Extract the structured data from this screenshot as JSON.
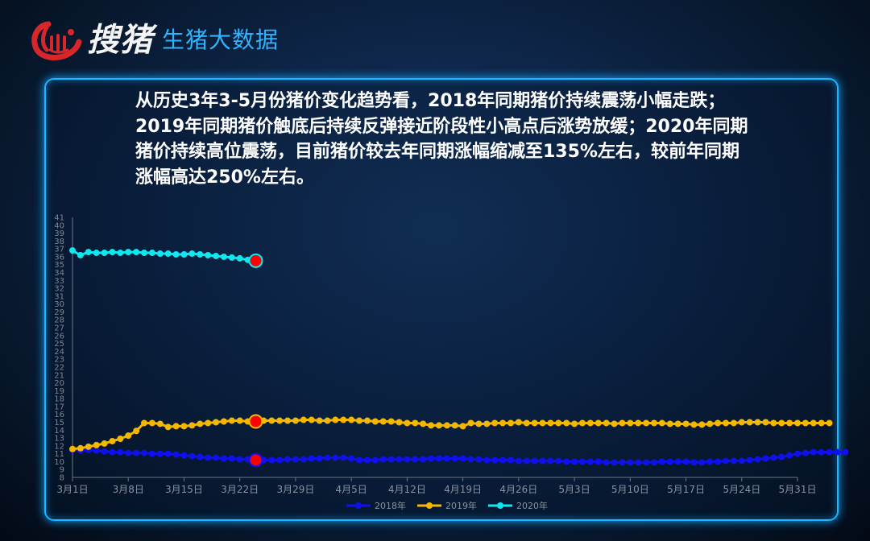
{
  "header": {
    "brand_name": "搜猪",
    "subtitle": "生猪大数据"
  },
  "summary": "从历史3年3-5月份猪价变化趋势看，2018年同期猪价持续震荡小幅走跌；2019年同期猪价触底后持续反弹接近阶段性小高点后涨势放缓；2020年同期猪价持续高位震荡，目前猪价较去年同期涨幅缩减至135%左右，较前年同期涨幅高达250%左右。",
  "colors": {
    "brand_red": "#d9262b",
    "subtitle_blue": "#2fb4ff",
    "panel_border": "#1ab6ff",
    "marker_red": "#ff0000"
  },
  "chart_data": {
    "type": "line",
    "title": "",
    "xlabel": "",
    "ylabel": "",
    "ylim": [
      8,
      41
    ],
    "y_ticks": [
      "8",
      "9",
      "10",
      "11",
      "12",
      "13",
      "14",
      "15",
      "16",
      "17",
      "18",
      "19",
      "20",
      "21",
      "22",
      "23",
      "24",
      "25",
      "26",
      "27",
      "28",
      "29",
      "30",
      "31",
      "32",
      "33",
      "34",
      "35",
      "36",
      "37",
      "38",
      "39",
      "40",
      "41"
    ],
    "x_tick_labels": [
      "3月1日",
      "3月8日",
      "3月15日",
      "3月22日",
      "3月29日",
      "4月5日",
      "4月12日",
      "4月19日",
      "4月26日",
      "5月3日",
      "5月10日",
      "5月17日",
      "5月24日",
      "5月31日"
    ],
    "x_start": "3月1日",
    "x_end": "5月31日",
    "legend_position": "bottom-center",
    "highlight_date": "3月24日",
    "series": [
      {
        "name": "2018年",
        "color": "#1010ee",
        "values": [
          11.5,
          11.4,
          11.5,
          11.4,
          11.3,
          11.2,
          11.2,
          11.1,
          11.1,
          11.1,
          11.0,
          11.0,
          11.0,
          10.9,
          10.8,
          10.7,
          10.6,
          10.5,
          10.5,
          10.4,
          10.4,
          10.3,
          10.3,
          10.2,
          10.2,
          10.2,
          10.2,
          10.3,
          10.3,
          10.3,
          10.4,
          10.4,
          10.5,
          10.5,
          10.5,
          10.4,
          10.2,
          10.2,
          10.2,
          10.3,
          10.3,
          10.3,
          10.3,
          10.3,
          10.3,
          10.4,
          10.4,
          10.4,
          10.4,
          10.4,
          10.3,
          10.3,
          10.2,
          10.2,
          10.2,
          10.2,
          10.1,
          10.1,
          10.1,
          10.1,
          10.1,
          10.1,
          10.0,
          10.0,
          10.0,
          10.0,
          10.0,
          9.9,
          9.9,
          9.9,
          9.9,
          9.9,
          9.9,
          9.9,
          10.0,
          10.0,
          10.0,
          10.0,
          9.9,
          9.9,
          10.0,
          10.0,
          10.1,
          10.1,
          10.1,
          10.2,
          10.3,
          10.4,
          10.5,
          10.6,
          10.8,
          11.0,
          11.1,
          11.2,
          11.2,
          11.2,
          11.2,
          11.2
        ]
      },
      {
        "name": "2019年",
        "color": "#f5b800",
        "values": [
          11.6,
          11.7,
          11.9,
          12.1,
          12.3,
          12.6,
          12.9,
          13.3,
          13.9,
          14.9,
          14.9,
          14.8,
          14.4,
          14.5,
          14.5,
          14.6,
          14.8,
          14.9,
          15.0,
          15.1,
          15.2,
          15.2,
          15.1,
          15.1,
          15.2,
          15.2,
          15.2,
          15.2,
          15.2,
          15.3,
          15.3,
          15.2,
          15.2,
          15.3,
          15.3,
          15.3,
          15.2,
          15.2,
          15.1,
          15.1,
          15.1,
          15.0,
          14.9,
          14.9,
          14.8,
          14.6,
          14.6,
          14.6,
          14.6,
          14.5,
          14.9,
          14.8,
          14.8,
          14.9,
          14.9,
          14.9,
          15.0,
          14.9,
          14.9,
          14.9,
          14.9,
          14.9,
          14.9,
          14.8,
          14.9,
          14.9,
          14.9,
          14.9,
          14.8,
          14.9,
          14.9,
          14.9,
          14.9,
          14.9,
          14.9,
          14.8,
          14.8,
          14.8,
          14.7,
          14.7,
          14.8,
          14.9,
          14.9,
          14.9,
          15.0,
          15.0,
          15.0,
          15.0,
          14.9,
          14.9,
          14.9,
          14.9,
          14.9,
          14.9,
          14.9,
          14.9
        ]
      },
      {
        "name": "2020年",
        "color": "#10e8f0",
        "values": [
          36.8,
          36.2,
          36.6,
          36.5,
          36.5,
          36.6,
          36.5,
          36.6,
          36.6,
          36.5,
          36.5,
          36.4,
          36.4,
          36.3,
          36.3,
          36.4,
          36.3,
          36.2,
          36.1,
          36.0,
          35.9,
          35.8,
          35.6,
          35.5
        ]
      }
    ]
  }
}
